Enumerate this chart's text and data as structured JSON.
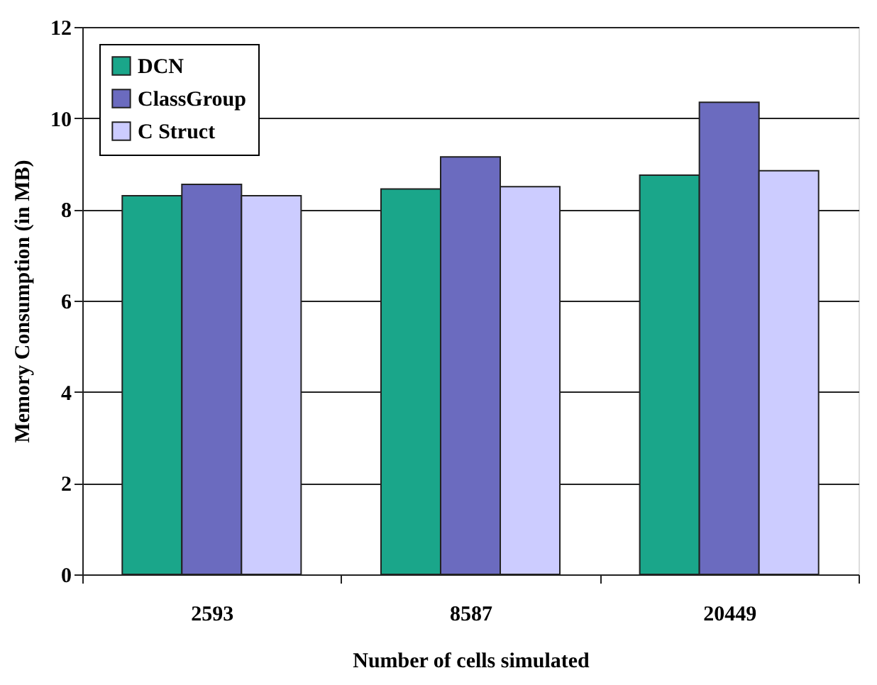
{
  "chart_data": {
    "type": "bar",
    "xlabel": "Number of cells simulated",
    "ylabel": "Memory Consumption (in MB)",
    "categories": [
      "2593",
      "8587",
      "20449"
    ],
    "series": [
      {
        "name": "DCN",
        "color": "#1aa68a",
        "values": [
          8.3,
          8.45,
          8.75
        ]
      },
      {
        "name": "ClassGroup",
        "color": "#6b6bbf",
        "values": [
          8.55,
          9.15,
          10.35
        ]
      },
      {
        "name": "C Struct",
        "color": "#ccccff",
        "values": [
          8.3,
          8.5,
          8.85
        ]
      }
    ],
    "ylim": [
      0,
      12
    ],
    "yticks": [
      0,
      2,
      4,
      6,
      8,
      10,
      12
    ],
    "grid": "y",
    "legend": "top left"
  }
}
